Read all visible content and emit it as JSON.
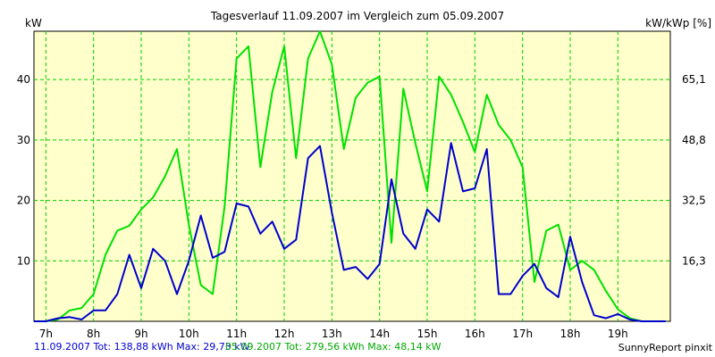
{
  "chart_data": {
    "type": "line",
    "title": "Tagesverlauf 11.09.2007 im Vergleich zum 05.09.2007",
    "ylabel_left": "kW",
    "ylabel_right": "kW/kWp [%]",
    "x_ticks": [
      "7h",
      "8h",
      "9h",
      "10h",
      "11h",
      "12h",
      "13h",
      "14h",
      "15h",
      "16h",
      "17h",
      "18h",
      "19h"
    ],
    "y_ticks_left": [
      "10",
      "20",
      "30",
      "40"
    ],
    "y_ticks_right": [
      "16,3",
      "32,5",
      "48,8",
      "65,1"
    ],
    "xlim": [
      6.75,
      20.1
    ],
    "ylim": [
      0,
      48
    ],
    "grid": true,
    "background": "#ffffcc",
    "grid_color": "#00cc00",
    "series": [
      {
        "name": "05.09.2007",
        "color": "#00e000",
        "x": [
          6.75,
          7.0,
          7.25,
          7.5,
          7.75,
          8.0,
          8.25,
          8.5,
          8.75,
          9.0,
          9.25,
          9.5,
          9.75,
          10.0,
          10.25,
          10.5,
          10.75,
          11.0,
          11.25,
          11.5,
          11.75,
          12.0,
          12.25,
          12.5,
          12.75,
          13.0,
          13.25,
          13.5,
          13.75,
          14.0,
          14.25,
          14.5,
          14.75,
          15.0,
          15.25,
          15.5,
          15.75,
          16.0,
          16.25,
          16.5,
          16.75,
          17.0,
          17.25,
          17.5,
          17.75,
          18.0,
          18.25,
          18.5,
          18.75,
          19.0,
          19.25,
          19.5,
          19.75,
          20.0
        ],
        "values": [
          0,
          0,
          0.3,
          1.8,
          2.2,
          4.5,
          11,
          15,
          15.8,
          18.5,
          20.5,
          24,
          28.5,
          16,
          6,
          4.5,
          19,
          43.5,
          45.5,
          25.5,
          38,
          45.5,
          27,
          43.5,
          48,
          42.5,
          28.5,
          37,
          39.5,
          40.5,
          13,
          38.5,
          29.5,
          21.5,
          40.5,
          37.5,
          33,
          28,
          37.5,
          32.5,
          30,
          25.5,
          6.5,
          15,
          16,
          8.5,
          10,
          8.5,
          5,
          2,
          0.5,
          0,
          0,
          0
        ]
      },
      {
        "name": "11.09.2007",
        "color": "#0000cc",
        "x": [
          6.75,
          7.0,
          7.25,
          7.5,
          7.75,
          8.0,
          8.25,
          8.5,
          8.75,
          9.0,
          9.25,
          9.5,
          9.75,
          10.0,
          10.25,
          10.5,
          10.75,
          11.0,
          11.25,
          11.5,
          11.75,
          12.0,
          12.25,
          12.5,
          12.75,
          13.0,
          13.25,
          13.5,
          13.75,
          14.0,
          14.25,
          14.5,
          14.75,
          15.0,
          15.25,
          15.5,
          15.75,
          16.0,
          16.25,
          16.5,
          16.75,
          17.0,
          17.25,
          17.5,
          17.75,
          18.0,
          18.25,
          18.5,
          18.75,
          19.0,
          19.25,
          19.5,
          19.75,
          20.0
        ],
        "values": [
          0,
          0,
          0.5,
          0.7,
          0.3,
          1.8,
          1.8,
          4.5,
          11,
          5.5,
          12,
          10,
          4.5,
          10,
          17.5,
          10.5,
          11.5,
          19.5,
          19,
          14.5,
          16.5,
          12,
          13.5,
          27,
          29,
          18,
          8.5,
          9,
          7,
          9.5,
          23.5,
          14.5,
          12,
          18.5,
          16.5,
          29.5,
          21.5,
          22,
          28.5,
          4.5,
          4.5,
          7.5,
          9.5,
          5.5,
          4,
          14,
          6.5,
          1,
          0.5,
          1.2,
          0.3,
          0,
          0,
          0
        ]
      }
    ]
  },
  "footer": {
    "legend_blue": "11.09.2007 Tot: 138,88 kWh Max: 29,73 kW",
    "legend_green": "05.09.2007 Tot: 279,56 kWh Max: 48,14 kW",
    "credit": "SunnyReport pinxit"
  }
}
